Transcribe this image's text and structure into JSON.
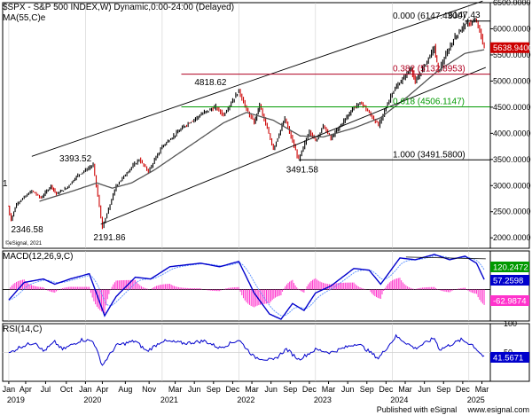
{
  "chart_data": [
    {
      "type": "candlestick",
      "title": "$SPX - S&P 500 INDEX,W) Dynamic,0:00-24:00 (Delayed)",
      "ma_label": "MA(55,C)e",
      "copyright": "©eSignal, 2021",
      "ylim": [
        1800,
        6500
      ],
      "yticks": [
        2000,
        2500,
        3000,
        3500,
        4000,
        4500,
        5000,
        5500,
        6000,
        6500
      ],
      "ytick_labels": [
        "2000.0000",
        "2500.0000",
        "3000.0000",
        "3500.0000",
        "4000.0000",
        "4500.0000",
        "5000.0000",
        "5500.0000",
        "6000.0000",
        "6500.0000"
      ],
      "price_anchors": [
        {
          "t": 2019.0,
          "v": 2600
        },
        {
          "t": 2019.01,
          "v": 2450
        },
        {
          "t": 2019.03,
          "v": 2346.58
        },
        {
          "t": 2019.1,
          "v": 2650
        },
        {
          "t": 2019.3,
          "v": 2900
        },
        {
          "t": 2019.42,
          "v": 2760
        },
        {
          "t": 2019.55,
          "v": 3000
        },
        {
          "t": 2019.62,
          "v": 2840
        },
        {
          "t": 2019.75,
          "v": 2950
        },
        {
          "t": 2019.9,
          "v": 3200
        },
        {
          "t": 2020.1,
          "v": 3393.52
        },
        {
          "t": 2020.14,
          "v": 3000
        },
        {
          "t": 2020.22,
          "v": 2191.86
        },
        {
          "t": 2020.4,
          "v": 3000
        },
        {
          "t": 2020.6,
          "v": 3350
        },
        {
          "t": 2020.7,
          "v": 3500
        },
        {
          "t": 2020.82,
          "v": 3270
        },
        {
          "t": 2021.0,
          "v": 3750
        },
        {
          "t": 2021.3,
          "v": 4150
        },
        {
          "t": 2021.55,
          "v": 4400
        },
        {
          "t": 2021.7,
          "v": 4500
        },
        {
          "t": 2021.8,
          "v": 4350
        },
        {
          "t": 2022.0,
          "v": 4818.62
        },
        {
          "t": 2022.1,
          "v": 4450
        },
        {
          "t": 2022.2,
          "v": 4200
        },
        {
          "t": 2022.27,
          "v": 4550
        },
        {
          "t": 2022.45,
          "v": 3700
        },
        {
          "t": 2022.6,
          "v": 4280
        },
        {
          "t": 2022.78,
          "v": 3491.58
        },
        {
          "t": 2022.92,
          "v": 4050
        },
        {
          "t": 2023.0,
          "v": 3850
        },
        {
          "t": 2023.1,
          "v": 4150
        },
        {
          "t": 2023.2,
          "v": 3900
        },
        {
          "t": 2023.5,
          "v": 4500
        },
        {
          "t": 2023.6,
          "v": 4580
        },
        {
          "t": 2023.82,
          "v": 4150
        },
        {
          "t": 2024.0,
          "v": 4780
        },
        {
          "t": 2024.25,
          "v": 5250
        },
        {
          "t": 2024.3,
          "v": 4970
        },
        {
          "t": 2024.55,
          "v": 5650
        },
        {
          "t": 2024.6,
          "v": 5180
        },
        {
          "t": 2024.8,
          "v": 5800
        },
        {
          "t": 2024.95,
          "v": 6090
        },
        {
          "t": 2025.1,
          "v": 6147.43
        },
        {
          "t": 2025.2,
          "v": 5638.94
        }
      ],
      "ma_anchors": [
        {
          "t": 2019.4,
          "v": 2700
        },
        {
          "t": 2019.8,
          "v": 2880
        },
        {
          "t": 2020.15,
          "v": 3050
        },
        {
          "t": 2020.35,
          "v": 2950
        },
        {
          "t": 2020.6,
          "v": 3050
        },
        {
          "t": 2020.9,
          "v": 3300
        },
        {
          "t": 2021.4,
          "v": 3800
        },
        {
          "t": 2021.8,
          "v": 4200
        },
        {
          "t": 2022.1,
          "v": 4400
        },
        {
          "t": 2022.45,
          "v": 4250
        },
        {
          "t": 2022.8,
          "v": 3950
        },
        {
          "t": 2023.1,
          "v": 3930
        },
        {
          "t": 2023.5,
          "v": 4100
        },
        {
          "t": 2023.85,
          "v": 4300
        },
        {
          "t": 2024.2,
          "v": 4700
        },
        {
          "t": 2024.6,
          "v": 5200
        },
        {
          "t": 2024.95,
          "v": 5530
        },
        {
          "t": 2025.2,
          "v": 5600
        }
      ],
      "annotations": [
        {
          "t": 2020.1,
          "v": 3393.52,
          "text": "3393.52"
        },
        {
          "t": 2019.03,
          "v": 2346.58,
          "text": "2346.58"
        },
        {
          "t": 2020.22,
          "v": 2191.86,
          "text": "2191.86"
        },
        {
          "t": 2022.0,
          "v": 4818.62,
          "text": "4818.62"
        },
        {
          "t": 2022.78,
          "v": 3491.58,
          "text": "3491.58"
        },
        {
          "t": 2025.1,
          "v": 6147.43,
          "text": "6147.43"
        }
      ],
      "fib_levels": [
        {
          "value": 6147.43,
          "label": "0.000 (6147.4300)",
          "color": "#000000"
        },
        {
          "value": 5132.8953,
          "label": "0.382 (5132.8953)",
          "color": "#b00020"
        },
        {
          "value": 4506.1147,
          "label": "0.618 (4506.1147)",
          "color": "#009900"
        },
        {
          "value": 3491.58,
          "label": "1.000 (3491.5800)",
          "color": "#000000"
        }
      ],
      "channel_lines": [
        {
          "t1": 2019.3,
          "v1": 3560,
          "t2": 2025.18,
          "v2": 6530
        },
        {
          "t1": 2020.2,
          "v1": 2260,
          "t2": 2025.22,
          "v2": 5260
        }
      ],
      "last_value_tags": [
        {
          "value": 6147.43,
          "text": "6147.43"
        },
        {
          "value": 5638.94,
          "text": "5638.9400"
        }
      ],
      "colors": {
        "price": "#cc0000",
        "ma": "#555555",
        "channel": "#000000"
      }
    },
    {
      "type": "line",
      "title": "MACD(12,26,9,C)",
      "series": [
        {
          "name": "MACD",
          "color": "#0000cc"
        },
        {
          "name": "Signal",
          "color": "#6699ff"
        },
        {
          "name": "Histogram",
          "color": "#ff33cc"
        }
      ],
      "macd_anchors": [
        {
          "t": 2019.0,
          "v": -60
        },
        {
          "t": 2019.2,
          "v": 40
        },
        {
          "t": 2019.45,
          "v": 60
        },
        {
          "t": 2019.6,
          "v": 30
        },
        {
          "t": 2019.8,
          "v": 60
        },
        {
          "t": 2020.05,
          "v": 90
        },
        {
          "t": 2020.25,
          "v": -150
        },
        {
          "t": 2020.4,
          "v": -40
        },
        {
          "t": 2020.65,
          "v": 70
        },
        {
          "t": 2020.85,
          "v": 60
        },
        {
          "t": 2021.1,
          "v": 130
        },
        {
          "t": 2021.5,
          "v": 150
        },
        {
          "t": 2021.75,
          "v": 130
        },
        {
          "t": 2022.0,
          "v": 160
        },
        {
          "t": 2022.2,
          "v": -20
        },
        {
          "t": 2022.4,
          "v": -140
        },
        {
          "t": 2022.55,
          "v": -170
        },
        {
          "t": 2022.7,
          "v": -80
        },
        {
          "t": 2022.85,
          "v": -120
        },
        {
          "t": 2023.0,
          "v": -20
        },
        {
          "t": 2023.2,
          "v": 20
        },
        {
          "t": 2023.5,
          "v": 120
        },
        {
          "t": 2023.7,
          "v": 110
        },
        {
          "t": 2023.85,
          "v": 30
        },
        {
          "t": 2024.1,
          "v": 180
        },
        {
          "t": 2024.3,
          "v": 170
        },
        {
          "t": 2024.55,
          "v": 200
        },
        {
          "t": 2024.75,
          "v": 170
        },
        {
          "t": 2024.95,
          "v": 190
        },
        {
          "t": 2025.1,
          "v": 150
        },
        {
          "t": 2025.2,
          "v": 57
        }
      ],
      "ylim": [
        -180,
        220
      ],
      "zero_value": 0,
      "last_value_tags": [
        {
          "value": 120.2472,
          "text": "120.2472",
          "color": "#009900"
        },
        {
          "value": 57.2598,
          "text": "57.2598",
          "color": "#0000cc"
        },
        {
          "value": -62.9874,
          "text": "-62.9874",
          "color": "#ff33cc"
        }
      ]
    },
    {
      "type": "line",
      "title": "RSI(14,C)",
      "color": "#0000cc",
      "ylim": [
        0,
        100
      ],
      "yticks": [
        50,
        100
      ],
      "ytick_labels": [
        "50",
        "100"
      ],
      "rsi_anchors": [
        {
          "t": 2019.0,
          "v": 48
        },
        {
          "t": 2019.15,
          "v": 60
        },
        {
          "t": 2019.35,
          "v": 68
        },
        {
          "t": 2019.45,
          "v": 52
        },
        {
          "t": 2019.6,
          "v": 68
        },
        {
          "t": 2019.7,
          "v": 55
        },
        {
          "t": 2019.95,
          "v": 72
        },
        {
          "t": 2020.1,
          "v": 70
        },
        {
          "t": 2020.22,
          "v": 28
        },
        {
          "t": 2020.4,
          "v": 62
        },
        {
          "t": 2020.65,
          "v": 70
        },
        {
          "t": 2020.8,
          "v": 52
        },
        {
          "t": 2021.0,
          "v": 70
        },
        {
          "t": 2021.3,
          "v": 66
        },
        {
          "t": 2021.55,
          "v": 70
        },
        {
          "t": 2021.75,
          "v": 58
        },
        {
          "t": 2022.0,
          "v": 72
        },
        {
          "t": 2022.2,
          "v": 42
        },
        {
          "t": 2022.45,
          "v": 36
        },
        {
          "t": 2022.62,
          "v": 56
        },
        {
          "t": 2022.78,
          "v": 38
        },
        {
          "t": 2023.0,
          "v": 55
        },
        {
          "t": 2023.2,
          "v": 50
        },
        {
          "t": 2023.55,
          "v": 66
        },
        {
          "t": 2023.82,
          "v": 40
        },
        {
          "t": 2024.05,
          "v": 78
        },
        {
          "t": 2024.3,
          "v": 57
        },
        {
          "t": 2024.55,
          "v": 75
        },
        {
          "t": 2024.62,
          "v": 55
        },
        {
          "t": 2024.9,
          "v": 72
        },
        {
          "t": 2025.05,
          "v": 63
        },
        {
          "t": 2025.2,
          "v": 41.5671
        }
      ],
      "last_value_tags": [
        {
          "value": 41.5671,
          "text": "41.5671"
        }
      ]
    }
  ],
  "x_axis": {
    "range": [
      2018.92,
      2025.28
    ],
    "ticks": [
      {
        "t": 2019.0,
        "text": "Jan"
      },
      {
        "t": 2019.22,
        "text": "Apr"
      },
      {
        "t": 2019.48,
        "text": "Jul"
      },
      {
        "t": 2019.75,
        "text": "Oct"
      },
      {
        "t": 2020.0,
        "text": "Jan"
      },
      {
        "t": 2020.22,
        "text": "Apr"
      },
      {
        "t": 2020.52,
        "text": "Aug"
      },
      {
        "t": 2020.83,
        "text": "Nov"
      },
      {
        "t": 2021.17,
        "text": "Mar"
      },
      {
        "t": 2021.42,
        "text": "Jun"
      },
      {
        "t": 2021.67,
        "text": "Sep"
      },
      {
        "t": 2021.92,
        "text": "Dec"
      },
      {
        "t": 2022.17,
        "text": "Mar"
      },
      {
        "t": 2022.42,
        "text": "Jun"
      },
      {
        "t": 2022.67,
        "text": "Sep"
      },
      {
        "t": 2022.92,
        "text": "Dec"
      },
      {
        "t": 2023.17,
        "text": "Mar"
      },
      {
        "t": 2023.42,
        "text": "Jun"
      },
      {
        "t": 2023.67,
        "text": "Sep"
      },
      {
        "t": 2023.92,
        "text": "Dec"
      },
      {
        "t": 2024.17,
        "text": "Mar"
      },
      {
        "t": 2024.42,
        "text": "Jun"
      },
      {
        "t": 2024.67,
        "text": "Sep"
      },
      {
        "t": 2024.92,
        "text": "Dec"
      },
      {
        "t": 2025.17,
        "text": "Mar"
      }
    ],
    "years": [
      {
        "t": 2019.0,
        "text": "2019"
      },
      {
        "t": 2020.0,
        "text": "2020"
      },
      {
        "t": 2021.0,
        "text": "2021"
      },
      {
        "t": 2022.0,
        "text": "2022"
      },
      {
        "t": 2023.0,
        "text": "2023"
      },
      {
        "t": 2024.0,
        "text": "2024"
      },
      {
        "t": 2025.0,
        "text": "2025"
      }
    ]
  },
  "footer": {
    "published_by": "Published with eSignal",
    "url": "www.esignal.com"
  },
  "left_edge_label": "1"
}
